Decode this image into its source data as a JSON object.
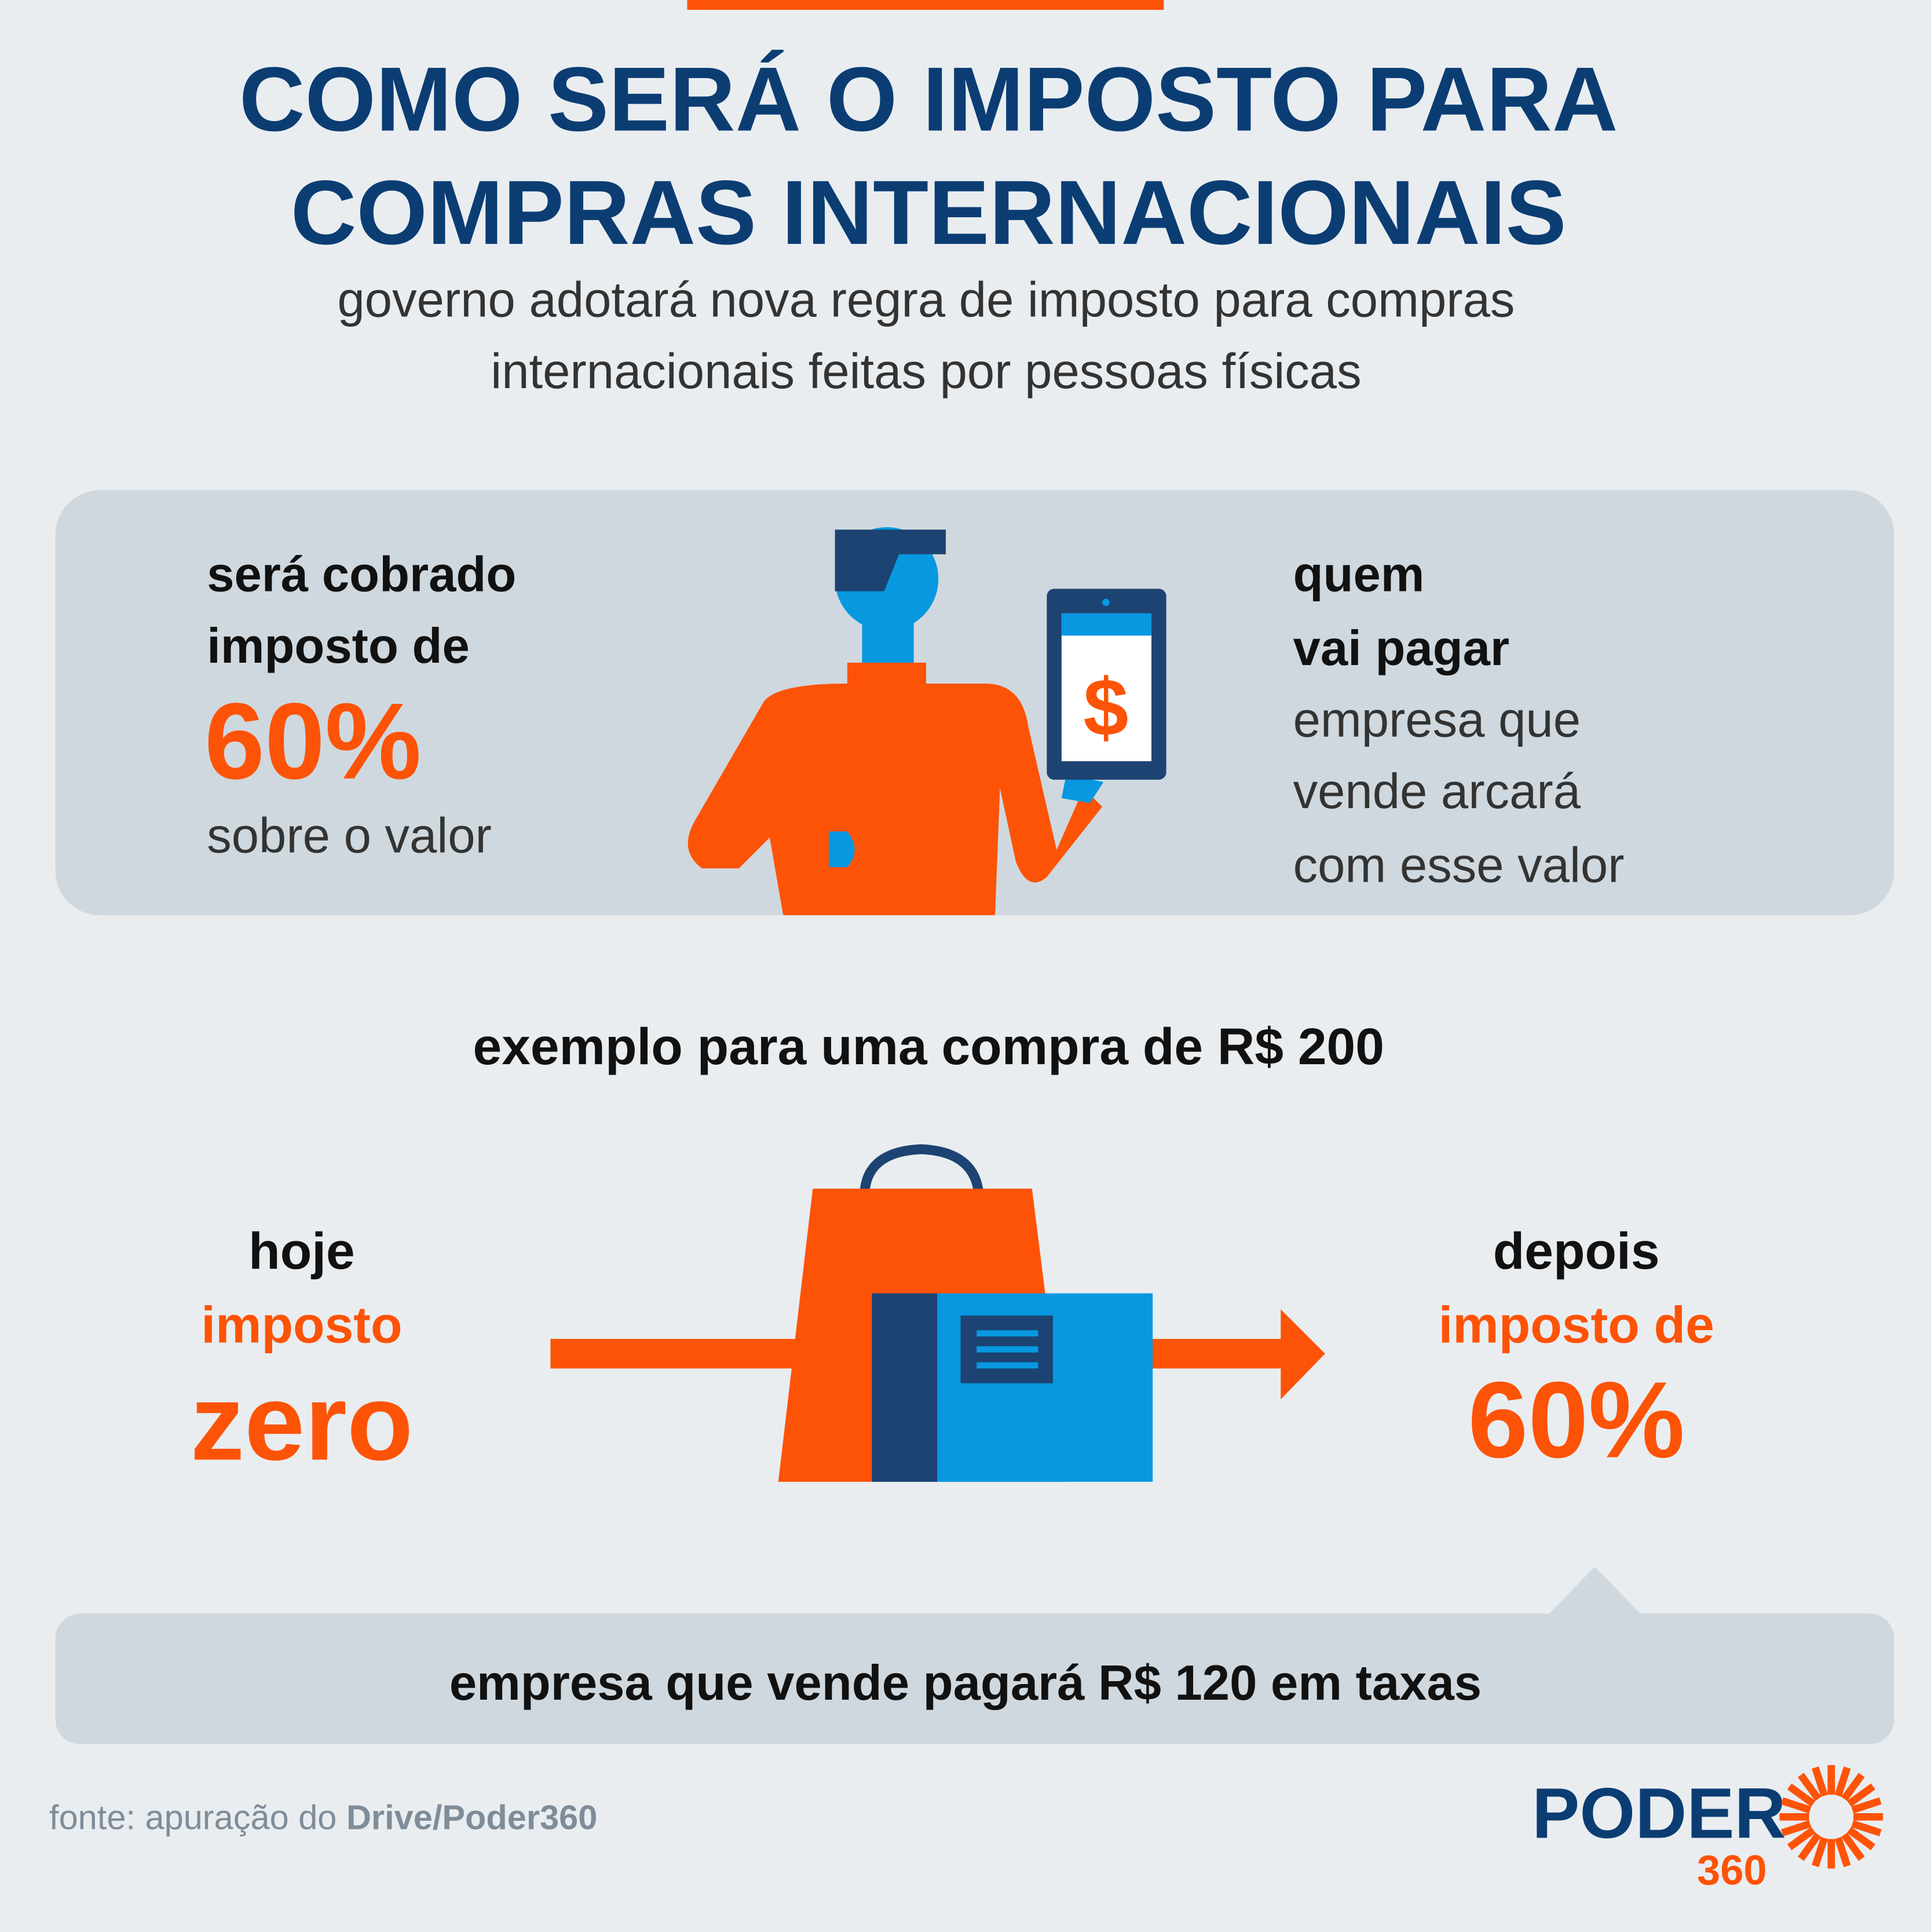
{
  "header": {
    "title": [
      "COMO SERÁ O IMPOSTO PARA",
      "COMPRAS INTERNACIONAIS"
    ],
    "subtitle": [
      "governo adotará nova regra de imposto para compras",
      "internacionais feitas por pessoas físicas"
    ]
  },
  "tax_panel": {
    "left": {
      "lead": [
        "será cobrado",
        "imposto de"
      ],
      "rate": "60%",
      "tail": "sobre o valor"
    },
    "phone_symbol": "$",
    "right": {
      "lead": [
        "quem",
        "vai pagar"
      ],
      "tail": [
        "empresa que",
        "vende arcará",
        "com esse valor"
      ]
    }
  },
  "example": {
    "heading": "exemplo para uma compra de R$ 200",
    "today": {
      "label": "hoje",
      "sub": "imposto",
      "value": "zero"
    },
    "after": {
      "label": "depois",
      "sub": "imposto de",
      "value": "60%"
    },
    "note": "empresa que vende pagará R$ 120 em taxas"
  },
  "footer": {
    "source_prefix": "fonte: apuração do ",
    "source_name": "Drive/Poder360",
    "logo_word": "PODER",
    "logo_number": "360"
  }
}
